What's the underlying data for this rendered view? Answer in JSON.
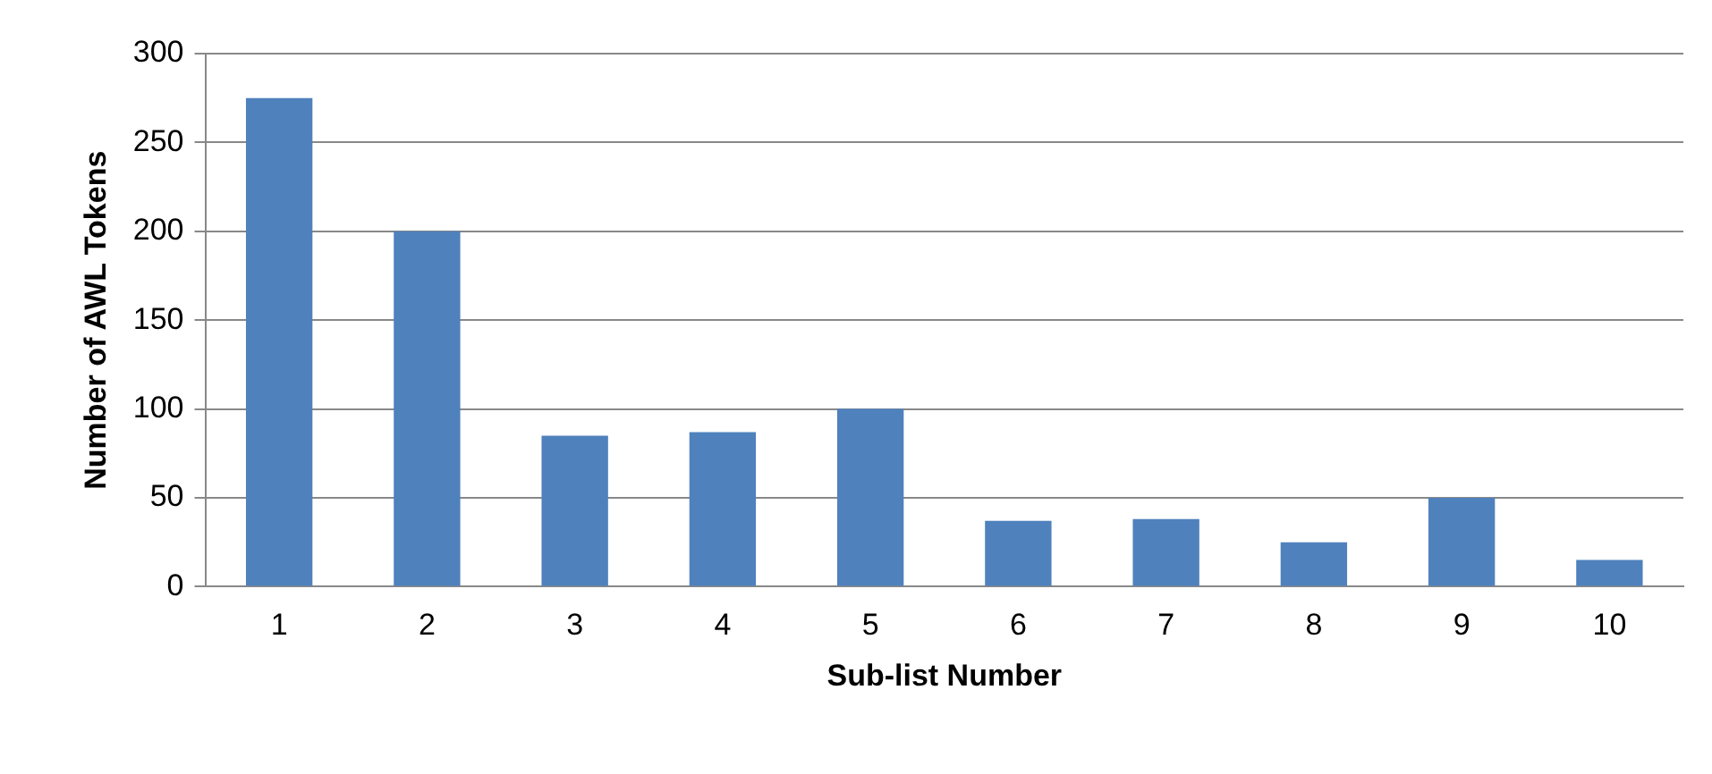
{
  "chart_data": {
    "type": "bar",
    "xlabel": "Sub-list Number",
    "ylabel": "Number of AWL Tokens",
    "categories": [
      "1",
      "2",
      "3",
      "4",
      "5",
      "6",
      "7",
      "8",
      "9",
      "10"
    ],
    "values": [
      275,
      200,
      85,
      87,
      100,
      37,
      38,
      25,
      50,
      15
    ],
    "color": "#4f81bd",
    "ylim": [
      0,
      300
    ],
    "yticks": [
      0,
      50,
      100,
      150,
      200,
      250,
      300
    ],
    "grid": "y",
    "legend": false
  }
}
